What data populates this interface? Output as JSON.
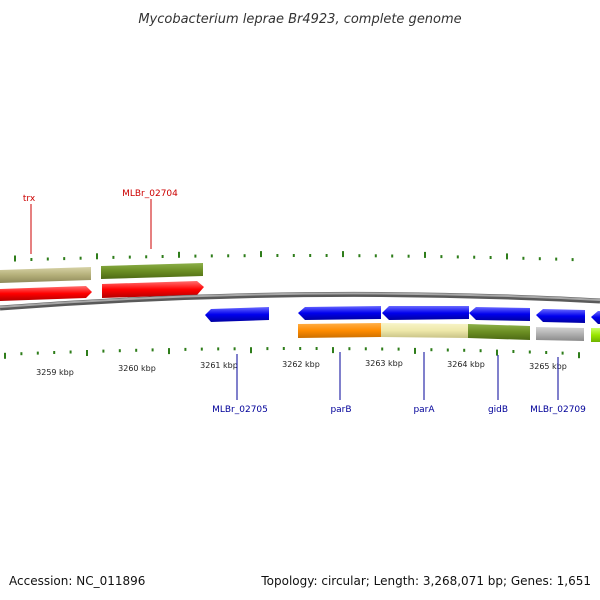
{
  "title": "Mycobacterium leprae Br4923, complete genome",
  "footer": {
    "accession": "Accession: NC_011896",
    "summary": "Topology: circular; Length: 3,268,071 bp; Genes: 1,651"
  },
  "colors": {
    "forward_label": "#cc0000",
    "reverse_label": "#000099",
    "backbone": "#7a7a7a",
    "tick": "#2e7d1a"
  },
  "kbp_labels": [
    "3259 kbp",
    "3260 kbp",
    "3261 kbp",
    "3262 kbp",
    "3263 kbp",
    "3264 kbp",
    "3265 kbp"
  ],
  "forward_gene_labels": [
    "trx",
    "MLBr_02704"
  ],
  "reverse_gene_labels": [
    "MLBr_02705",
    "parB",
    "parA",
    "gidB",
    "MLBr_02709"
  ],
  "features": {
    "forward_cds_colors": [
      "#ff0000",
      "#ff0000"
    ],
    "forward_band_colors": [
      "#b5b07a",
      "#6b8e23"
    ],
    "reverse_cds_colors": [
      "#0000ee",
      "#0000ee",
      "#0000ee",
      "#0000ee",
      "#0000ee",
      "#0000ee"
    ],
    "reverse_band_colors": [
      "#ff8c00",
      "#eee8aa",
      "#6b8e23",
      "#b0b0b0",
      "#99e600"
    ]
  }
}
